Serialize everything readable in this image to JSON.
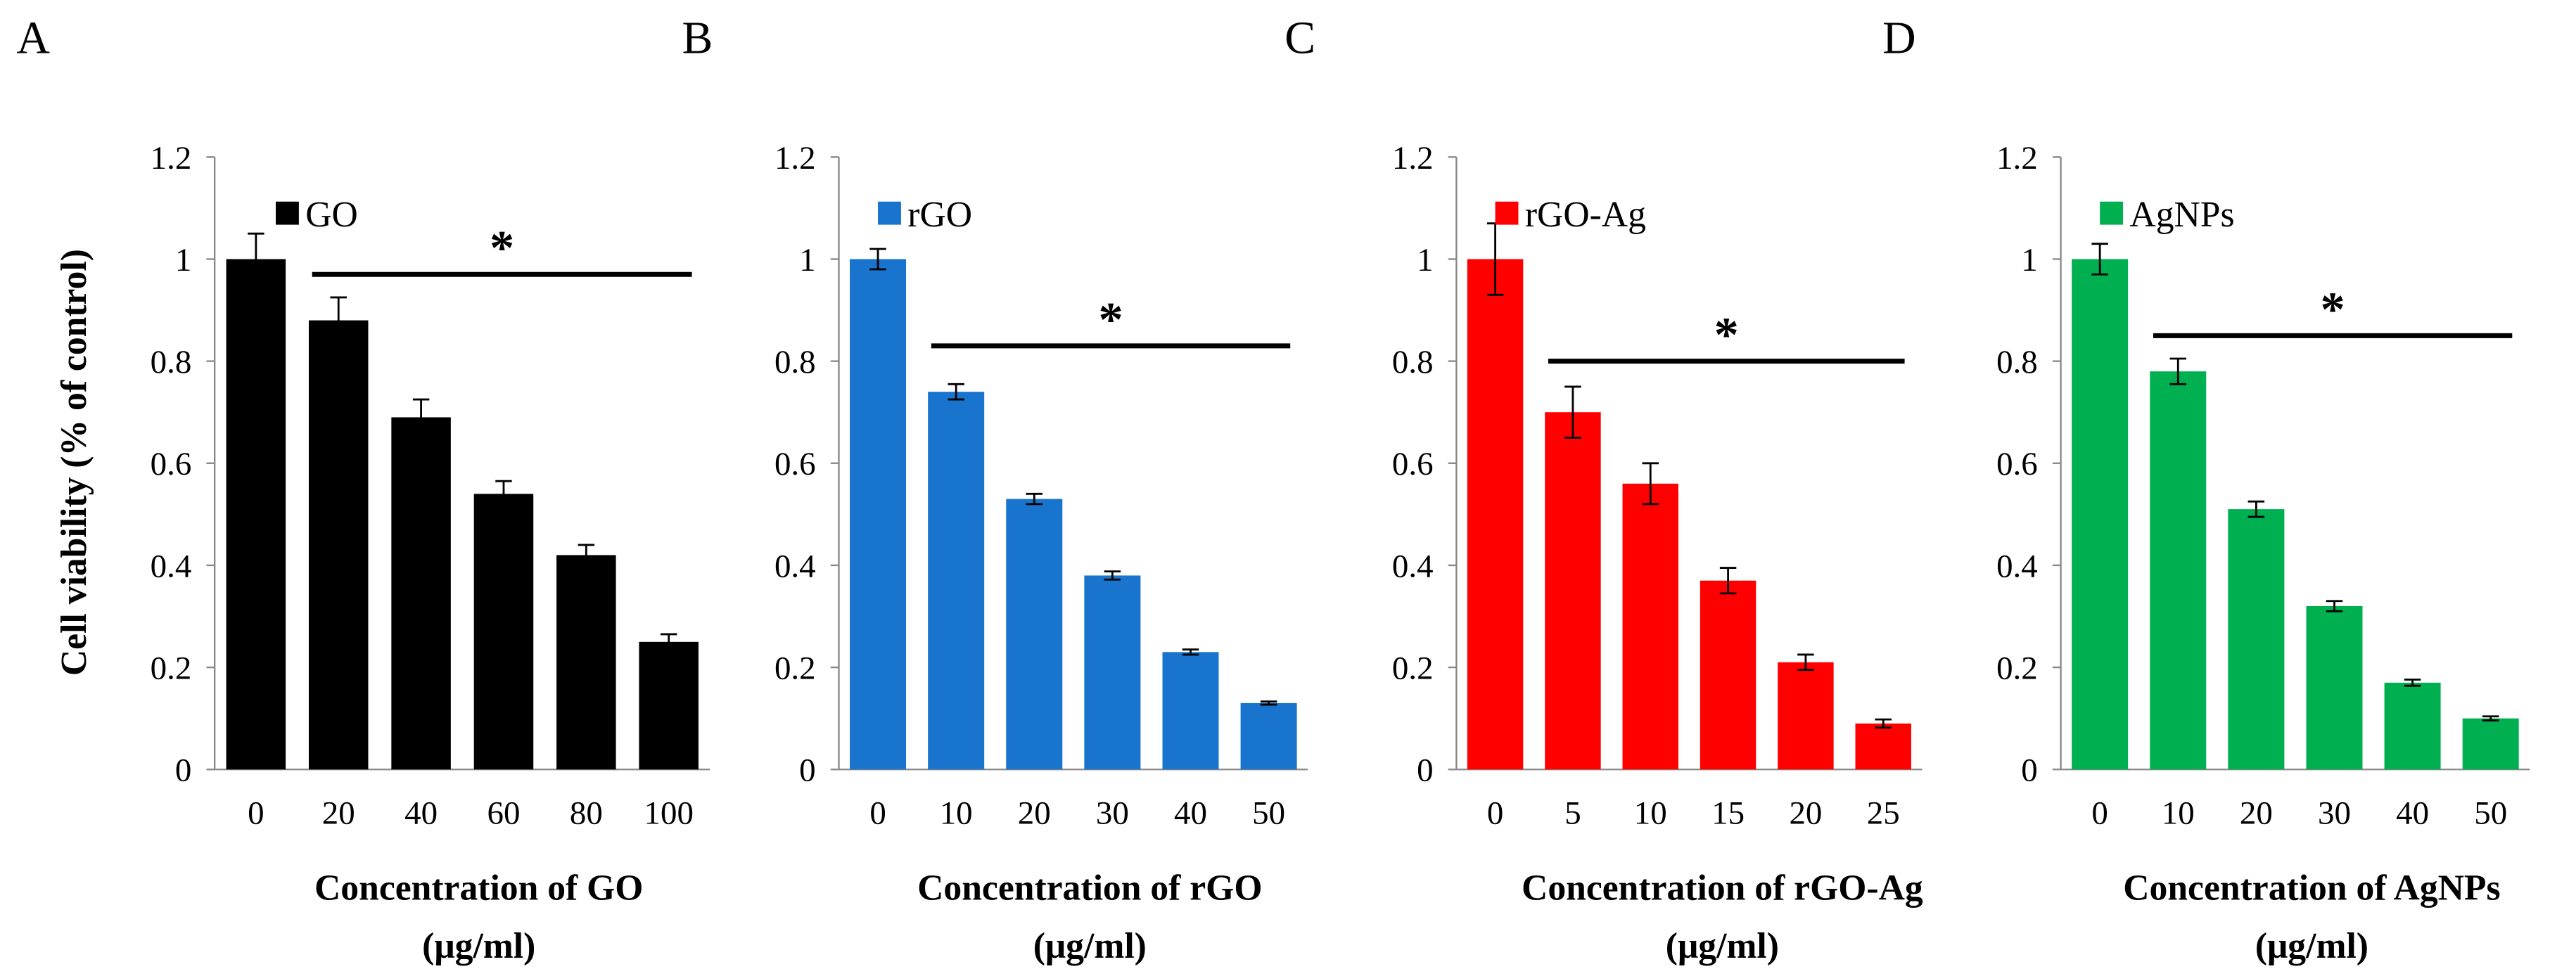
{
  "chart_data": [
    {
      "type": "bar",
      "panel_label": "A",
      "legend": "GO",
      "color": "#000000",
      "categories": [
        "0",
        "20",
        "40",
        "60",
        "80",
        "100"
      ],
      "values": [
        1.0,
        0.88,
        0.69,
        0.54,
        0.42,
        0.25
      ],
      "errors": [
        0.05,
        0.045,
        0.035,
        0.025,
        0.02,
        0.015
      ],
      "xlabel_line1": "Concentration of GO",
      "xlabel_line2": "(μg/ml)",
      "ylabel": "Cell viability (% of control)",
      "ylim": [
        0,
        1.2
      ],
      "yticks": [
        "0",
        "0.2",
        "0.4",
        "0.6",
        "0.8",
        "1",
        "1.2"
      ],
      "significance": {
        "from": "20",
        "to": "100",
        "level": 0.97,
        "mark": "*"
      }
    },
    {
      "type": "bar",
      "panel_label": "B",
      "legend": "rGO",
      "color": "#1874CD",
      "categories": [
        "0",
        "10",
        "20",
        "30",
        "40",
        "50"
      ],
      "values": [
        1.0,
        0.74,
        0.53,
        0.38,
        0.23,
        0.13
      ],
      "errors": [
        0.02,
        0.015,
        0.01,
        0.008,
        0.005,
        0.003
      ],
      "xlabel_line1": "Concentration of rGO",
      "xlabel_line2": "(μg/ml)",
      "ylim": [
        0,
        1.2
      ],
      "yticks": [
        "0",
        "0.2",
        "0.4",
        "0.6",
        "0.8",
        "1",
        "1.2"
      ],
      "significance": {
        "from": "10",
        "to": "50",
        "level": 0.83,
        "mark": "*"
      }
    },
    {
      "type": "bar",
      "panel_label": "C",
      "legend": "rGO-Ag",
      "color": "#FF0000",
      "categories": [
        "0",
        "5",
        "10",
        "15",
        "20",
        "25"
      ],
      "values": [
        1.0,
        0.7,
        0.56,
        0.37,
        0.21,
        0.09
      ],
      "errors": [
        0.07,
        0.05,
        0.04,
        0.025,
        0.015,
        0.008
      ],
      "xlabel_line1": "Concentration of rGO-Ag",
      "xlabel_line2": "(μg/ml)",
      "ylim": [
        0,
        1.2
      ],
      "yticks": [
        "0",
        "0.2",
        "0.4",
        "0.6",
        "0.8",
        "1",
        "1.2"
      ],
      "significance": {
        "from": "5",
        "to": "25",
        "level": 0.8,
        "mark": "*"
      }
    },
    {
      "type": "bar",
      "panel_label": "D",
      "legend": "AgNPs",
      "color": "#00B050",
      "categories": [
        "0",
        "10",
        "20",
        "30",
        "40",
        "50"
      ],
      "values": [
        1.0,
        0.78,
        0.51,
        0.32,
        0.17,
        0.1
      ],
      "errors": [
        0.03,
        0.025,
        0.015,
        0.01,
        0.006,
        0.004
      ],
      "xlabel_line1": "Concentration of AgNPs",
      "xlabel_line2": "(μg/ml)",
      "ylim": [
        0,
        1.2
      ],
      "yticks": [
        "0",
        "0.2",
        "0.4",
        "0.6",
        "0.8",
        "1",
        "1.2"
      ],
      "significance": {
        "from": "10",
        "to": "50",
        "level": 0.85,
        "mark": "*"
      }
    }
  ]
}
